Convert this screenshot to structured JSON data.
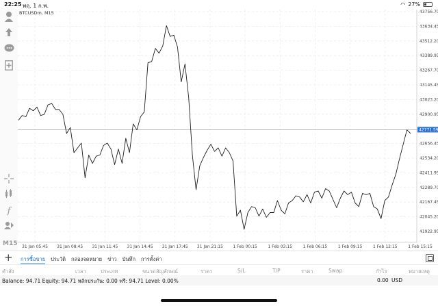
{
  "status": {
    "time": "22:25",
    "date": "พฤ. 1 ก.พ.",
    "battery": "27%"
  },
  "toolbar": {
    "timeframe": "M15",
    "icons": [
      "account-icon",
      "trade-icon",
      "chat-icon",
      "new-order-icon",
      "crosshair-icon",
      "indicators-icon",
      "function-icon",
      "objects-icon"
    ]
  },
  "chart": {
    "symbol_label": "BTCUSDm, M15",
    "current_price": "42771.59",
    "price_ticks": [
      "43756.70",
      "43634.45",
      "43512.20",
      "43389.95",
      "43267.70",
      "43145.45",
      "43023.20",
      "42900.95",
      "42656.45",
      "42534.20",
      "42411.95",
      "42289.70",
      "42167.45",
      "42045.20",
      "41922.95"
    ],
    "time_ticks": [
      "31 Jan 05:45",
      "31 Jan 08:45",
      "31 Jan 11:45",
      "31 Jan 14:45",
      "31 Jan 17:45",
      "31 Jan 21:15",
      "1 Feb 00:15",
      "1 Feb 03:15",
      "1 Feb 06:15",
      "1 Feb 09:15",
      "1 Feb 12:15",
      "1 Feb 15:15"
    ],
    "colors": {
      "line": "#1c1c1c",
      "price_tag": "#2c6fd3"
    }
  },
  "chart_data": {
    "type": "line",
    "title": "BTCUSDm, M15",
    "xlabel": "",
    "ylabel": "",
    "ylim": [
      41880,
      43780
    ],
    "y": [
      42850,
      42890,
      42880,
      42950,
      42930,
      42960,
      42890,
      42900,
      42980,
      42990,
      42940,
      42940,
      42900,
      42740,
      42790,
      42580,
      42620,
      42660,
      42370,
      42560,
      42490,
      42550,
      42560,
      42640,
      42660,
      42610,
      42480,
      42610,
      42490,
      42700,
      42580,
      42820,
      42770,
      42880,
      42920,
      43330,
      43340,
      43450,
      43410,
      43470,
      43640,
      43550,
      43560,
      43460,
      43170,
      43320,
      43040,
      42560,
      42270,
      42470,
      42540,
      42600,
      42650,
      42590,
      42620,
      42550,
      42620,
      42580,
      42510,
      42050,
      42100,
      41940,
      42080,
      42130,
      42120,
      42050,
      42110,
      42040,
      42080,
      42080,
      42180,
      42100,
      42070,
      42160,
      42180,
      42220,
      42210,
      42170,
      42230,
      42160,
      42250,
      42260,
      42200,
      42280,
      42260,
      42190,
      42120,
      42200,
      42260,
      42230,
      42250,
      42160,
      42130,
      42240,
      42230,
      42240,
      42130,
      42110,
      42030,
      42180,
      42210,
      42310,
      42400,
      42530,
      42650,
      42770,
      42740
    ]
  },
  "tabs": {
    "items": [
      "การซื้อขาย",
      "ประวัติ",
      "กล่องจดหมาย",
      "ข่าว",
      "บันทึก",
      "การตั้งค่า"
    ],
    "active": 0
  },
  "columns": {
    "headers": [
      "คำสั่ง",
      "เวลา",
      "ประเภท",
      "ขนาด",
      "สัญลักษณ์",
      "ราคา",
      "S/L",
      "T/P",
      "ราคา",
      "Swap",
      "กำไร",
      "หมายเหตุ"
    ]
  },
  "balance": {
    "text": "Balance: 94.71  Equity: 94.71  หลักประกัน: 0.00  ฟรี: 94.71  Level: 0.00%",
    "total": "0.00",
    "currency": "USD"
  }
}
